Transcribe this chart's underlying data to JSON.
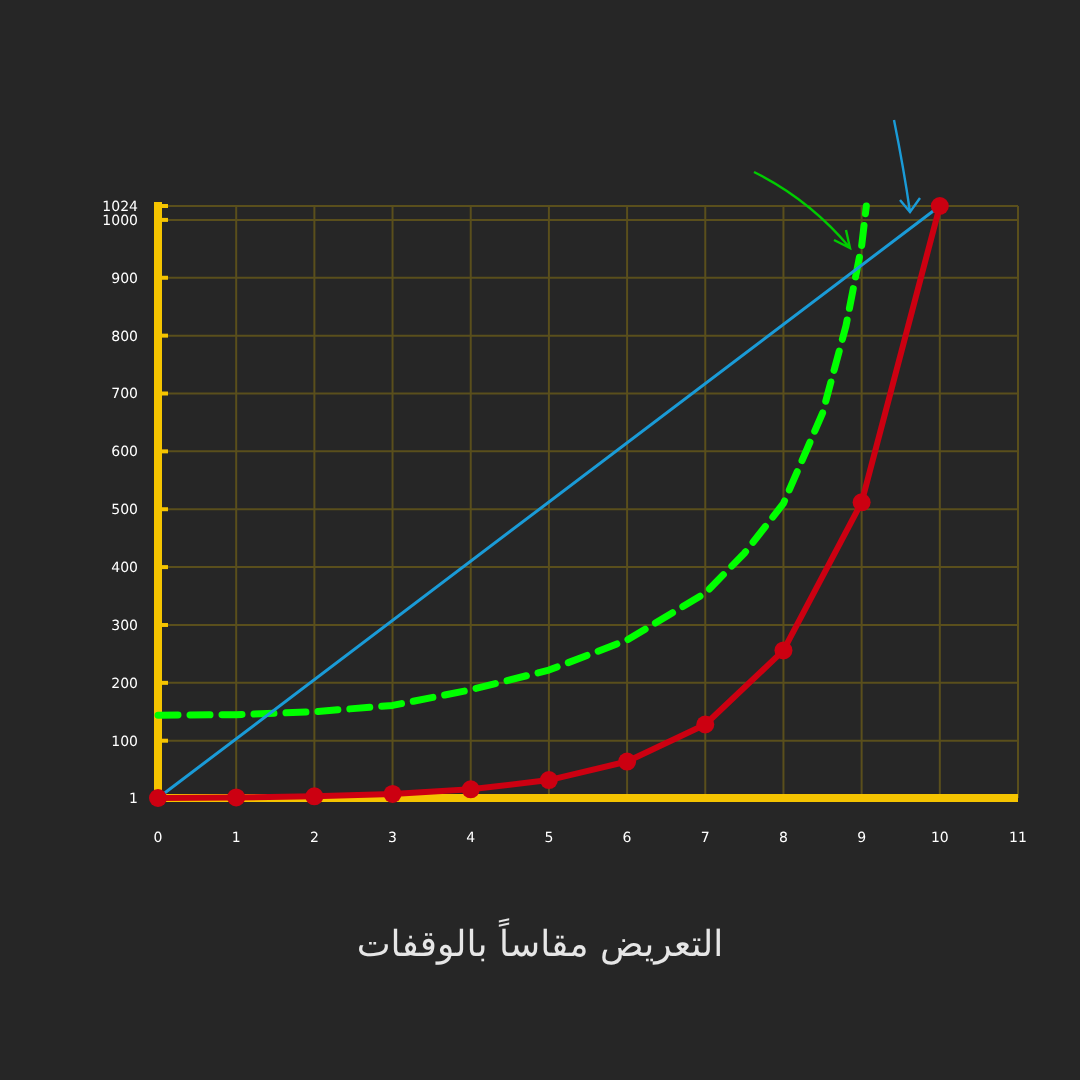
{
  "chart_data": {
    "type": "line",
    "xlabel": "التعريض مقاساً بالوقفات",
    "xlim": [
      0,
      11
    ],
    "xticks": [
      0,
      1,
      2,
      3,
      4,
      5,
      6,
      7,
      8,
      9,
      10,
      11
    ],
    "ylim": [
      1,
      1024
    ],
    "yticks": [
      1,
      100,
      200,
      300,
      400,
      500,
      600,
      700,
      800,
      900,
      1000,
      1024
    ],
    "grid": true,
    "series": [
      {
        "color": "#00ff00",
        "line_style": "dashed",
        "marker": "none",
        "x": [
          0,
          1,
          2,
          3,
          4,
          5,
          6,
          7,
          7.5,
          8,
          8.5,
          8.8,
          9,
          9.06
        ],
        "values": [
          144,
          145,
          150,
          161,
          188,
          222,
          274,
          355,
          424,
          510,
          666,
          817,
          955,
          1024
        ]
      },
      {
        "color": "#1a9bd7",
        "line_style": "solid",
        "marker": "none",
        "x": [
          0,
          10
        ],
        "values": [
          1,
          1024
        ]
      },
      {
        "color": "#cc0011",
        "line_style": "solid",
        "marker": "circle",
        "x": [
          0,
          1,
          2,
          3,
          4,
          5,
          6,
          7,
          8,
          9,
          10
        ],
        "values": [
          1,
          2,
          4,
          8,
          16,
          32,
          64,
          128,
          256,
          512,
          1024
        ]
      }
    ]
  }
}
